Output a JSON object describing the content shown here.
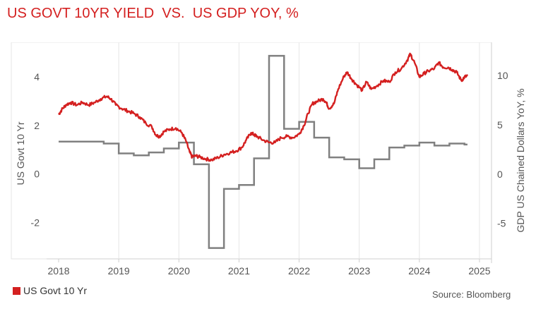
{
  "title": "US GOVT 10YR YIELD  VS.  US GDP YOY, %",
  "legend": {
    "label": "US Govt 10 Yr",
    "color": "#d42020"
  },
  "source": "Source: Bloomberg",
  "colors": {
    "yield": "#d42020",
    "gdp": "#808080",
    "grid": "#e6e6e6"
  },
  "chart_data": {
    "type": "line",
    "title": "US GOVT 10YR YIELD  VS.  US GDP YOY, %",
    "x_tick_labels": [
      "2018",
      "2019",
      "2020",
      "2021",
      "2022",
      "2023",
      "2024",
      "2025"
    ],
    "x_range": [
      2017.8,
      2025.2
    ],
    "left_axis": {
      "label": "US Govt 10 Yr",
      "range": [
        -3.5,
        5.2
      ],
      "ticks": [
        -2,
        0,
        2,
        4
      ]
    },
    "right_axis": {
      "label": "GDP US Chained Dollars YoY, %",
      "range": [
        -8.6,
        12.8
      ],
      "ticks": [
        -5,
        0,
        5,
        10
      ]
    },
    "grid": "vertical",
    "legend_position": "bottom-left",
    "series": [
      {
        "name": "US Govt 10 Yr",
        "axis": "left",
        "style": "line",
        "x": [
          2018.0,
          2018.05,
          2018.12,
          2018.2,
          2018.3,
          2018.4,
          2018.5,
          2018.6,
          2018.7,
          2018.8,
          2018.87,
          2018.95,
          2019.05,
          2019.15,
          2019.25,
          2019.35,
          2019.45,
          2019.55,
          2019.62,
          2019.68,
          2019.75,
          2019.85,
          2019.95,
          2020.05,
          2020.12,
          2020.18,
          2020.22,
          2020.28,
          2020.35,
          2020.45,
          2020.55,
          2020.65,
          2020.75,
          2020.85,
          2020.95,
          2021.05,
          2021.12,
          2021.2,
          2021.25,
          2021.3,
          2021.4,
          2021.5,
          2021.6,
          2021.7,
          2021.8,
          2021.9,
          2022.0,
          2022.08,
          2022.15,
          2022.22,
          2022.3,
          2022.4,
          2022.45,
          2022.5,
          2022.58,
          2022.65,
          2022.75,
          2022.8,
          2022.88,
          2022.95,
          2023.05,
          2023.12,
          2023.2,
          2023.3,
          2023.4,
          2023.5,
          2023.6,
          2023.7,
          2023.8,
          2023.85,
          2023.92,
          2024.0,
          2024.08,
          2024.15,
          2024.25,
          2024.32,
          2024.4,
          2024.48,
          2024.55,
          2024.62,
          2024.7,
          2024.75,
          2024.8
        ],
        "y": [
          2.45,
          2.65,
          2.85,
          2.95,
          2.85,
          2.95,
          2.85,
          2.95,
          3.1,
          3.2,
          3.1,
          2.85,
          2.7,
          2.6,
          2.5,
          2.35,
          2.1,
          1.95,
          1.6,
          1.55,
          1.75,
          1.85,
          1.9,
          1.7,
          1.35,
          0.9,
          0.7,
          0.75,
          0.7,
          0.62,
          0.58,
          0.68,
          0.8,
          0.88,
          0.95,
          1.1,
          1.4,
          1.7,
          1.62,
          1.55,
          1.4,
          1.3,
          1.3,
          1.5,
          1.55,
          1.5,
          1.65,
          2.0,
          2.5,
          2.9,
          3.0,
          3.1,
          2.95,
          2.7,
          2.9,
          3.5,
          4.05,
          4.2,
          3.9,
          3.7,
          3.45,
          3.8,
          3.5,
          3.65,
          3.85,
          3.8,
          4.2,
          4.35,
          4.7,
          4.95,
          4.6,
          4.0,
          4.15,
          4.25,
          4.35,
          4.6,
          4.4,
          4.4,
          4.3,
          4.2,
          3.85,
          4.0,
          4.05
        ]
      },
      {
        "name": "GDP US Chained Dollars YoY, %",
        "axis": "right",
        "style": "step",
        "x": [
          2018.0,
          2018.5,
          2018.75,
          2019.0,
          2019.25,
          2019.5,
          2019.75,
          2020.0,
          2020.25,
          2020.5,
          2020.75,
          2021.0,
          2021.25,
          2021.5,
          2021.75,
          2022.0,
          2022.25,
          2022.5,
          2022.75,
          2023.0,
          2023.25,
          2023.5,
          2023.75,
          2024.0,
          2024.25,
          2024.5,
          2024.75,
          2024.8
        ],
        "y": [
          3.3,
          3.3,
          3.1,
          2.1,
          1.9,
          2.2,
          2.6,
          3.2,
          1.0,
          -7.5,
          -1.5,
          -1.1,
          1.6,
          12.0,
          4.6,
          5.3,
          3.7,
          1.7,
          1.5,
          0.6,
          1.5,
          2.7,
          2.9,
          3.2,
          2.9,
          3.1,
          3.0,
          3.0
        ]
      }
    ]
  }
}
